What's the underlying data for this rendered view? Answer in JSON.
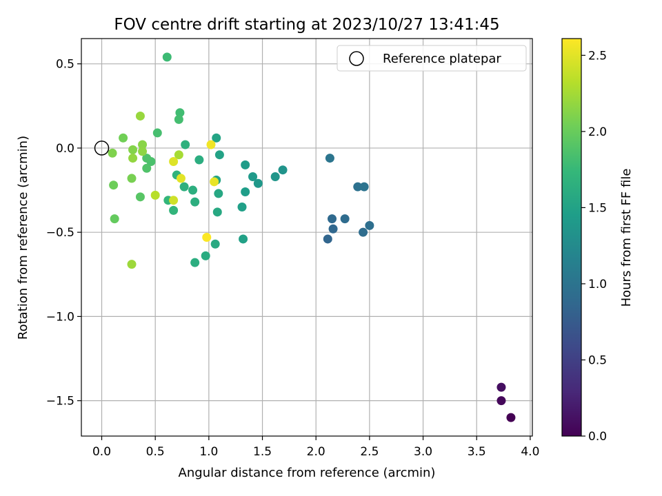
{
  "chart_data": {
    "type": "scatter",
    "title": "FOV centre drift starting at 2023/10/27 13:41:45",
    "xlabel": "Angular distance from reference (arcmin)",
    "ylabel": "Rotation from reference (arcmin)",
    "xlim": [
      -0.19,
      4.02
    ],
    "ylim": [
      -1.71,
      0.65
    ],
    "xticks": [
      0.0,
      0.5,
      1.0,
      1.5,
      2.0,
      2.5,
      3.0,
      3.5,
      4.0
    ],
    "xtick_labels": [
      "0.0",
      "0.5",
      "1.0",
      "1.5",
      "2.0",
      "2.5",
      "3.0",
      "3.5",
      "4.0"
    ],
    "yticks": [
      -1.5,
      -1.0,
      -0.5,
      0.0,
      0.5
    ],
    "ytick_labels": [
      "−1.5",
      "−1.0",
      "−0.5",
      "0.0",
      "0.5"
    ],
    "grid": true,
    "legend": {
      "position": "top-right",
      "entries": [
        {
          "label": "Reference platepar",
          "marker": "open-circle"
        }
      ]
    },
    "reference_point": {
      "x": 0.0,
      "y": 0.0
    },
    "colorbar": {
      "label": "Hours from first FF file",
      "range": [
        0.0,
        2.61
      ],
      "ticks": [
        0.0,
        0.5,
        1.0,
        1.5,
        2.0,
        2.5
      ],
      "tick_labels": [
        "0.0",
        "0.5",
        "1.0",
        "1.5",
        "2.0",
        "2.5"
      ],
      "colormap": "viridis",
      "colormap_stops": [
        "#440154",
        "#482878",
        "#3e4989",
        "#31688e",
        "#26828e",
        "#1f9e89",
        "#35b779",
        "#6ece58",
        "#b5de2b",
        "#fde725"
      ]
    },
    "points": [
      {
        "x": 3.82,
        "y": -1.6,
        "c": 0.0
      },
      {
        "x": 3.73,
        "y": -1.5,
        "c": 0.05
      },
      {
        "x": 3.73,
        "y": -1.42,
        "c": 0.1
      },
      {
        "x": 2.11,
        "y": -0.54,
        "c": 0.85
      },
      {
        "x": 2.16,
        "y": -0.48,
        "c": 0.87
      },
      {
        "x": 2.15,
        "y": -0.42,
        "c": 0.89
      },
      {
        "x": 2.27,
        "y": -0.42,
        "c": 0.91
      },
      {
        "x": 2.44,
        "y": -0.5,
        "c": 0.93
      },
      {
        "x": 2.5,
        "y": -0.46,
        "c": 0.95
      },
      {
        "x": 2.39,
        "y": -0.23,
        "c": 0.97
      },
      {
        "x": 2.45,
        "y": -0.23,
        "c": 0.99
      },
      {
        "x": 2.13,
        "y": -0.06,
        "c": 1.01
      },
      {
        "x": 1.69,
        "y": -0.13,
        "c": 1.35
      },
      {
        "x": 1.62,
        "y": -0.17,
        "c": 1.37
      },
      {
        "x": 1.46,
        "y": -0.21,
        "c": 1.39
      },
      {
        "x": 1.41,
        "y": -0.17,
        "c": 1.41
      },
      {
        "x": 1.34,
        "y": -0.1,
        "c": 1.43
      },
      {
        "x": 1.34,
        "y": -0.26,
        "c": 1.45
      },
      {
        "x": 1.31,
        "y": -0.35,
        "c": 1.47
      },
      {
        "x": 1.32,
        "y": -0.54,
        "c": 1.49
      },
      {
        "x": 1.1,
        "y": -0.04,
        "c": 1.5
      },
      {
        "x": 1.07,
        "y": 0.06,
        "c": 1.52
      },
      {
        "x": 1.07,
        "y": -0.19,
        "c": 1.53
      },
      {
        "x": 1.09,
        "y": -0.27,
        "c": 1.55
      },
      {
        "x": 1.08,
        "y": -0.38,
        "c": 1.57
      },
      {
        "x": 1.06,
        "y": -0.57,
        "c": 1.58
      },
      {
        "x": 0.97,
        "y": -0.64,
        "c": 1.6
      },
      {
        "x": 0.87,
        "y": -0.68,
        "c": 1.62
      },
      {
        "x": 0.91,
        "y": -0.07,
        "c": 1.62
      },
      {
        "x": 0.85,
        "y": -0.25,
        "c": 1.63
      },
      {
        "x": 0.87,
        "y": -0.32,
        "c": 1.64
      },
      {
        "x": 0.77,
        "y": -0.23,
        "c": 1.65
      },
      {
        "x": 0.78,
        "y": 0.02,
        "c": 1.66
      },
      {
        "x": 0.7,
        "y": -0.16,
        "c": 1.68
      },
      {
        "x": 0.67,
        "y": -0.37,
        "c": 1.7
      },
      {
        "x": 0.62,
        "y": -0.31,
        "c": 1.72
      },
      {
        "x": 0.61,
        "y": 0.54,
        "c": 1.78
      },
      {
        "x": 0.73,
        "y": 0.21,
        "c": 1.8
      },
      {
        "x": 0.72,
        "y": 0.17,
        "c": 1.82
      },
      {
        "x": 0.52,
        "y": 0.09,
        "c": 1.83
      },
      {
        "x": 0.46,
        "y": -0.08,
        "c": 1.85
      },
      {
        "x": 0.42,
        "y": -0.06,
        "c": 1.87
      },
      {
        "x": 0.42,
        "y": -0.12,
        "c": 1.88
      },
      {
        "x": 0.36,
        "y": -0.29,
        "c": 1.92
      },
      {
        "x": 0.12,
        "y": -0.42,
        "c": 1.98
      },
      {
        "x": 0.11,
        "y": -0.22,
        "c": 2.02
      },
      {
        "x": 0.2,
        "y": 0.06,
        "c": 2.04
      },
      {
        "x": 0.28,
        "y": -0.18,
        "c": 2.07
      },
      {
        "x": 0.1,
        "y": -0.03,
        "c": 2.1
      },
      {
        "x": 0.29,
        "y": -0.01,
        "c": 2.12
      },
      {
        "x": 0.38,
        "y": 0.02,
        "c": 2.14
      },
      {
        "x": 0.38,
        "y": -0.02,
        "c": 2.16
      },
      {
        "x": 0.29,
        "y": -0.06,
        "c": 2.18
      },
      {
        "x": 0.36,
        "y": 0.19,
        "c": 2.2
      },
      {
        "x": 0.28,
        "y": -0.69,
        "c": 2.22
      },
      {
        "x": 0.72,
        "y": -0.04,
        "c": 2.26
      },
      {
        "x": 0.5,
        "y": -0.28,
        "c": 2.33
      },
      {
        "x": 0.67,
        "y": -0.31,
        "c": 2.42
      },
      {
        "x": 0.67,
        "y": -0.08,
        "c": 2.48
      },
      {
        "x": 0.74,
        "y": -0.18,
        "c": 2.5
      },
      {
        "x": 1.05,
        "y": -0.2,
        "c": 2.52
      },
      {
        "x": 1.02,
        "y": 0.02,
        "c": 2.56
      },
      {
        "x": 0.98,
        "y": -0.53,
        "c": 2.6
      }
    ]
  }
}
